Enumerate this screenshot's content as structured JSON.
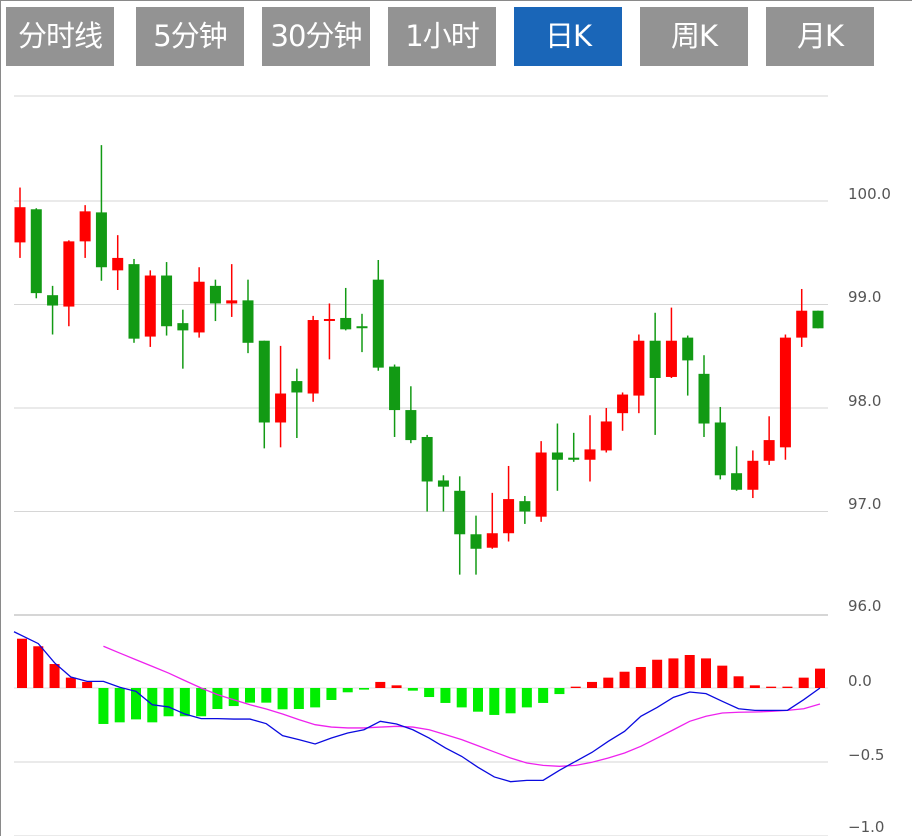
{
  "tabs": [
    {
      "label": "分时线",
      "active": false
    },
    {
      "label": "5分钟",
      "active": false
    },
    {
      "label": "30分钟",
      "active": false
    },
    {
      "label": "1小时",
      "active": false
    },
    {
      "label": "日K",
      "active": true
    },
    {
      "label": "周K",
      "active": false
    },
    {
      "label": "月K",
      "active": false
    }
  ],
  "colors": {
    "up": "#ff0000",
    "down": "#129a14",
    "macd_up": "#ff0000",
    "macd_down": "#00ee00",
    "dif": "#0a0adf",
    "dea": "#ee22ee",
    "tab_active": "#1a66b8",
    "tab": "#939393",
    "grid": "#d6d6d6"
  },
  "chart_data": [
    {
      "type": "candlestick",
      "title": "",
      "ylim": [
        95.9,
        101.0
      ],
      "yticks": [
        "100.0",
        "99.0",
        "98.0",
        "97.0",
        "96.0"
      ],
      "ytick_values": [
        100,
        99,
        98,
        97,
        96
      ],
      "grid": true,
      "fields": [
        "open",
        "close",
        "high",
        "low"
      ],
      "candles": [
        [
          99.6,
          99.94,
          100.13,
          99.45
        ],
        [
          99.92,
          99.11,
          99.93,
          99.06
        ],
        [
          99.09,
          98.99,
          99.18,
          98.71
        ],
        [
          98.98,
          99.61,
          99.62,
          98.79
        ],
        [
          99.61,
          99.9,
          99.96,
          99.45
        ],
        [
          99.89,
          99.36,
          100.54,
          99.23
        ],
        [
          99.33,
          99.45,
          99.67,
          99.14
        ],
        [
          99.39,
          98.67,
          99.44,
          98.63
        ],
        [
          98.69,
          99.28,
          99.33,
          98.59
        ],
        [
          99.28,
          98.79,
          99.41,
          98.7
        ],
        [
          98.82,
          98.75,
          98.95,
          98.38
        ],
        [
          98.73,
          99.22,
          99.36,
          98.68
        ],
        [
          99.18,
          99.01,
          99.24,
          98.84
        ],
        [
          99.01,
          99.04,
          99.39,
          98.88
        ],
        [
          99.04,
          98.63,
          99.24,
          98.53
        ],
        [
          98.65,
          97.86,
          98.65,
          97.61
        ],
        [
          97.86,
          98.14,
          98.6,
          97.62
        ],
        [
          98.26,
          98.15,
          98.38,
          97.71
        ],
        [
          98.14,
          98.85,
          98.89,
          98.06
        ],
        [
          98.85,
          98.86,
          99.01,
          98.47
        ],
        [
          98.87,
          98.76,
          99.16,
          98.75
        ],
        [
          98.79,
          98.78,
          98.91,
          98.54
        ],
        [
          99.24,
          98.39,
          99.43,
          98.36
        ],
        [
          98.4,
          97.98,
          98.42,
          97.72
        ],
        [
          97.98,
          97.69,
          98.21,
          97.66
        ],
        [
          97.72,
          97.29,
          97.74,
          97.0
        ],
        [
          97.3,
          97.24,
          97.35,
          97.0
        ],
        [
          97.2,
          96.78,
          97.34,
          96.39
        ],
        [
          96.78,
          96.64,
          96.96,
          96.39
        ],
        [
          96.65,
          96.79,
          97.18,
          96.64
        ],
        [
          96.79,
          97.12,
          97.44,
          96.71
        ],
        [
          97.1,
          97.0,
          97.15,
          96.88
        ],
        [
          96.95,
          97.57,
          97.68,
          96.9
        ],
        [
          97.57,
          97.5,
          97.85,
          97.2
        ],
        [
          97.52,
          97.5,
          97.76,
          97.48
        ],
        [
          97.5,
          97.6,
          97.93,
          97.29
        ],
        [
          97.59,
          97.87,
          98.0,
          97.57
        ],
        [
          97.95,
          98.13,
          98.15,
          97.78
        ],
        [
          98.12,
          98.65,
          98.71,
          97.95
        ],
        [
          98.65,
          98.29,
          98.92,
          97.74
        ],
        [
          98.3,
          98.65,
          98.97,
          98.29
        ],
        [
          98.68,
          98.46,
          98.7,
          98.12
        ],
        [
          98.33,
          97.85,
          98.51,
          97.72
        ],
        [
          97.86,
          97.35,
          98.01,
          97.31
        ],
        [
          97.37,
          97.21,
          97.63,
          97.2
        ],
        [
          97.21,
          97.49,
          97.59,
          97.13
        ],
        [
          97.49,
          97.69,
          97.92,
          97.45
        ],
        [
          97.62,
          98.68,
          98.71,
          97.5
        ],
        [
          98.68,
          98.94,
          99.15,
          98.59
        ],
        [
          98.94,
          98.77,
          98.94,
          98.77
        ]
      ]
    },
    {
      "type": "macd",
      "title": "",
      "ylim": [
        -1.0,
        0.4
      ],
      "yticks": [
        "0.0",
        "−0.5",
        "−1.0"
      ],
      "ytick_values": [
        0,
        -0.5,
        -1.0
      ],
      "grid": true,
      "histogram": [
        0.333,
        0.282,
        0.162,
        0.07,
        0.041,
        -0.243,
        -0.232,
        -0.212,
        -0.232,
        -0.191,
        -0.191,
        -0.191,
        -0.142,
        -0.122,
        -0.099,
        -0.099,
        -0.144,
        -0.142,
        -0.131,
        -0.081,
        -0.029,
        -0.011,
        0.041,
        0.018,
        -0.018,
        -0.061,
        -0.101,
        -0.131,
        -0.16,
        -0.182,
        -0.171,
        -0.131,
        -0.101,
        -0.041,
        0.009,
        0.041,
        0.07,
        0.11,
        0.142,
        0.191,
        0.2,
        0.223,
        0.2,
        0.151,
        0.079,
        0.018,
        0.009,
        0.009,
        0.07,
        0.131
      ],
      "dif": [
        0.38,
        0.3,
        0.17,
        0.074,
        0.045,
        0.045,
        0.005,
        -0.023,
        -0.113,
        -0.128,
        -0.176,
        -0.207,
        -0.207,
        -0.21,
        -0.21,
        -0.241,
        -0.322,
        -0.349,
        -0.378,
        -0.338,
        -0.304,
        -0.282,
        -0.225,
        -0.243,
        -0.282,
        -0.338,
        -0.405,
        -0.462,
        -0.536,
        -0.601,
        -0.633,
        -0.624,
        -0.624,
        -0.556,
        -0.495,
        -0.435,
        -0.36,
        -0.293,
        -0.191,
        -0.131,
        -0.063,
        -0.027,
        -0.038,
        -0.09,
        -0.14,
        -0.151,
        -0.151,
        -0.151,
        -0.079,
        0.0
      ],
      "dea": [
        null,
        null,
        null,
        null,
        null,
        0.282,
        0.236,
        0.191,
        0.146,
        0.101,
        0.05,
        0.0,
        -0.045,
        -0.079,
        -0.113,
        -0.142,
        -0.176,
        -0.214,
        -0.248,
        -0.264,
        -0.27,
        -0.27,
        -0.264,
        -0.259,
        -0.264,
        -0.282,
        -0.315,
        -0.349,
        -0.39,
        -0.432,
        -0.473,
        -0.507,
        -0.523,
        -0.529,
        -0.523,
        -0.502,
        -0.473,
        -0.439,
        -0.394,
        -0.338,
        -0.282,
        -0.225,
        -0.191,
        -0.169,
        -0.164,
        -0.162,
        -0.158,
        -0.151,
        -0.14,
        -0.108
      ]
    }
  ]
}
